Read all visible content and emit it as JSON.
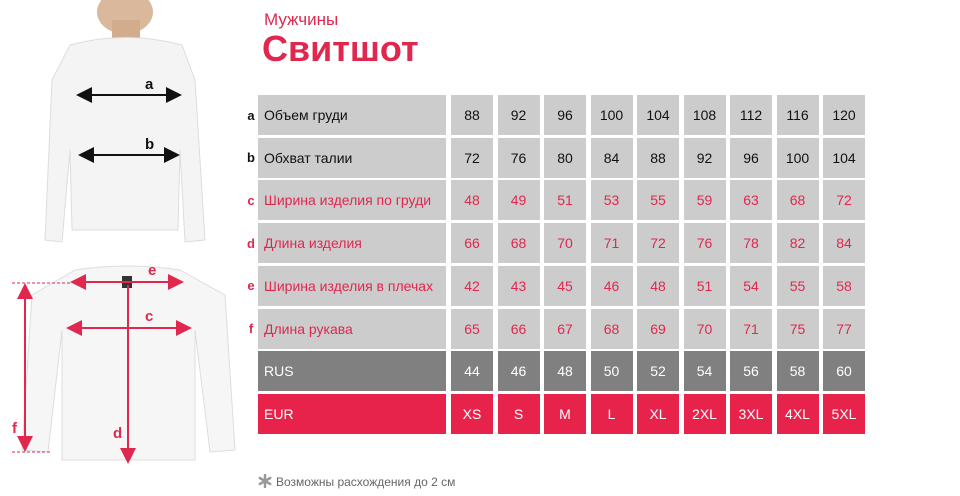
{
  "header": {
    "category": "Мужчины",
    "title": "Свитшот"
  },
  "table": {
    "rows": [
      {
        "letter": "a",
        "label": "Объем груди",
        "values": [
          88,
          92,
          96,
          100,
          104,
          108,
          112,
          116,
          120
        ]
      },
      {
        "letter": "b",
        "label": "Обхват талии",
        "values": [
          72,
          76,
          80,
          84,
          88,
          92,
          96,
          100,
          104
        ]
      },
      {
        "letter": "c",
        "label": "Ширина изделия по груди",
        "values": [
          48,
          49,
          51,
          53,
          55,
          59,
          63,
          68,
          72
        ]
      },
      {
        "letter": "d",
        "label": "Длина изделия",
        "values": [
          66,
          68,
          70,
          71,
          72,
          76,
          78,
          82,
          84
        ]
      },
      {
        "letter": "e",
        "label": "Ширина изделия в плечах",
        "values": [
          42,
          43,
          45,
          46,
          48,
          51,
          54,
          55,
          58
        ]
      },
      {
        "letter": "f",
        "label": "Длина рукава",
        "values": [
          65,
          66,
          67,
          68,
          69,
          70,
          71,
          75,
          77
        ]
      }
    ],
    "size_rows": [
      {
        "label": "RUS",
        "values": [
          44,
          46,
          48,
          50,
          52,
          54,
          56,
          58,
          60
        ]
      },
      {
        "label": "EUR",
        "values": [
          "XS",
          "S",
          "M",
          "L",
          "XL",
          "2XL",
          "3XL",
          "4XL",
          "5XL"
        ]
      }
    ]
  },
  "diagram": {
    "labels": [
      "a",
      "b",
      "e",
      "c",
      "d",
      "f"
    ]
  },
  "footnote": "Возможны расхождения до 2 см"
}
